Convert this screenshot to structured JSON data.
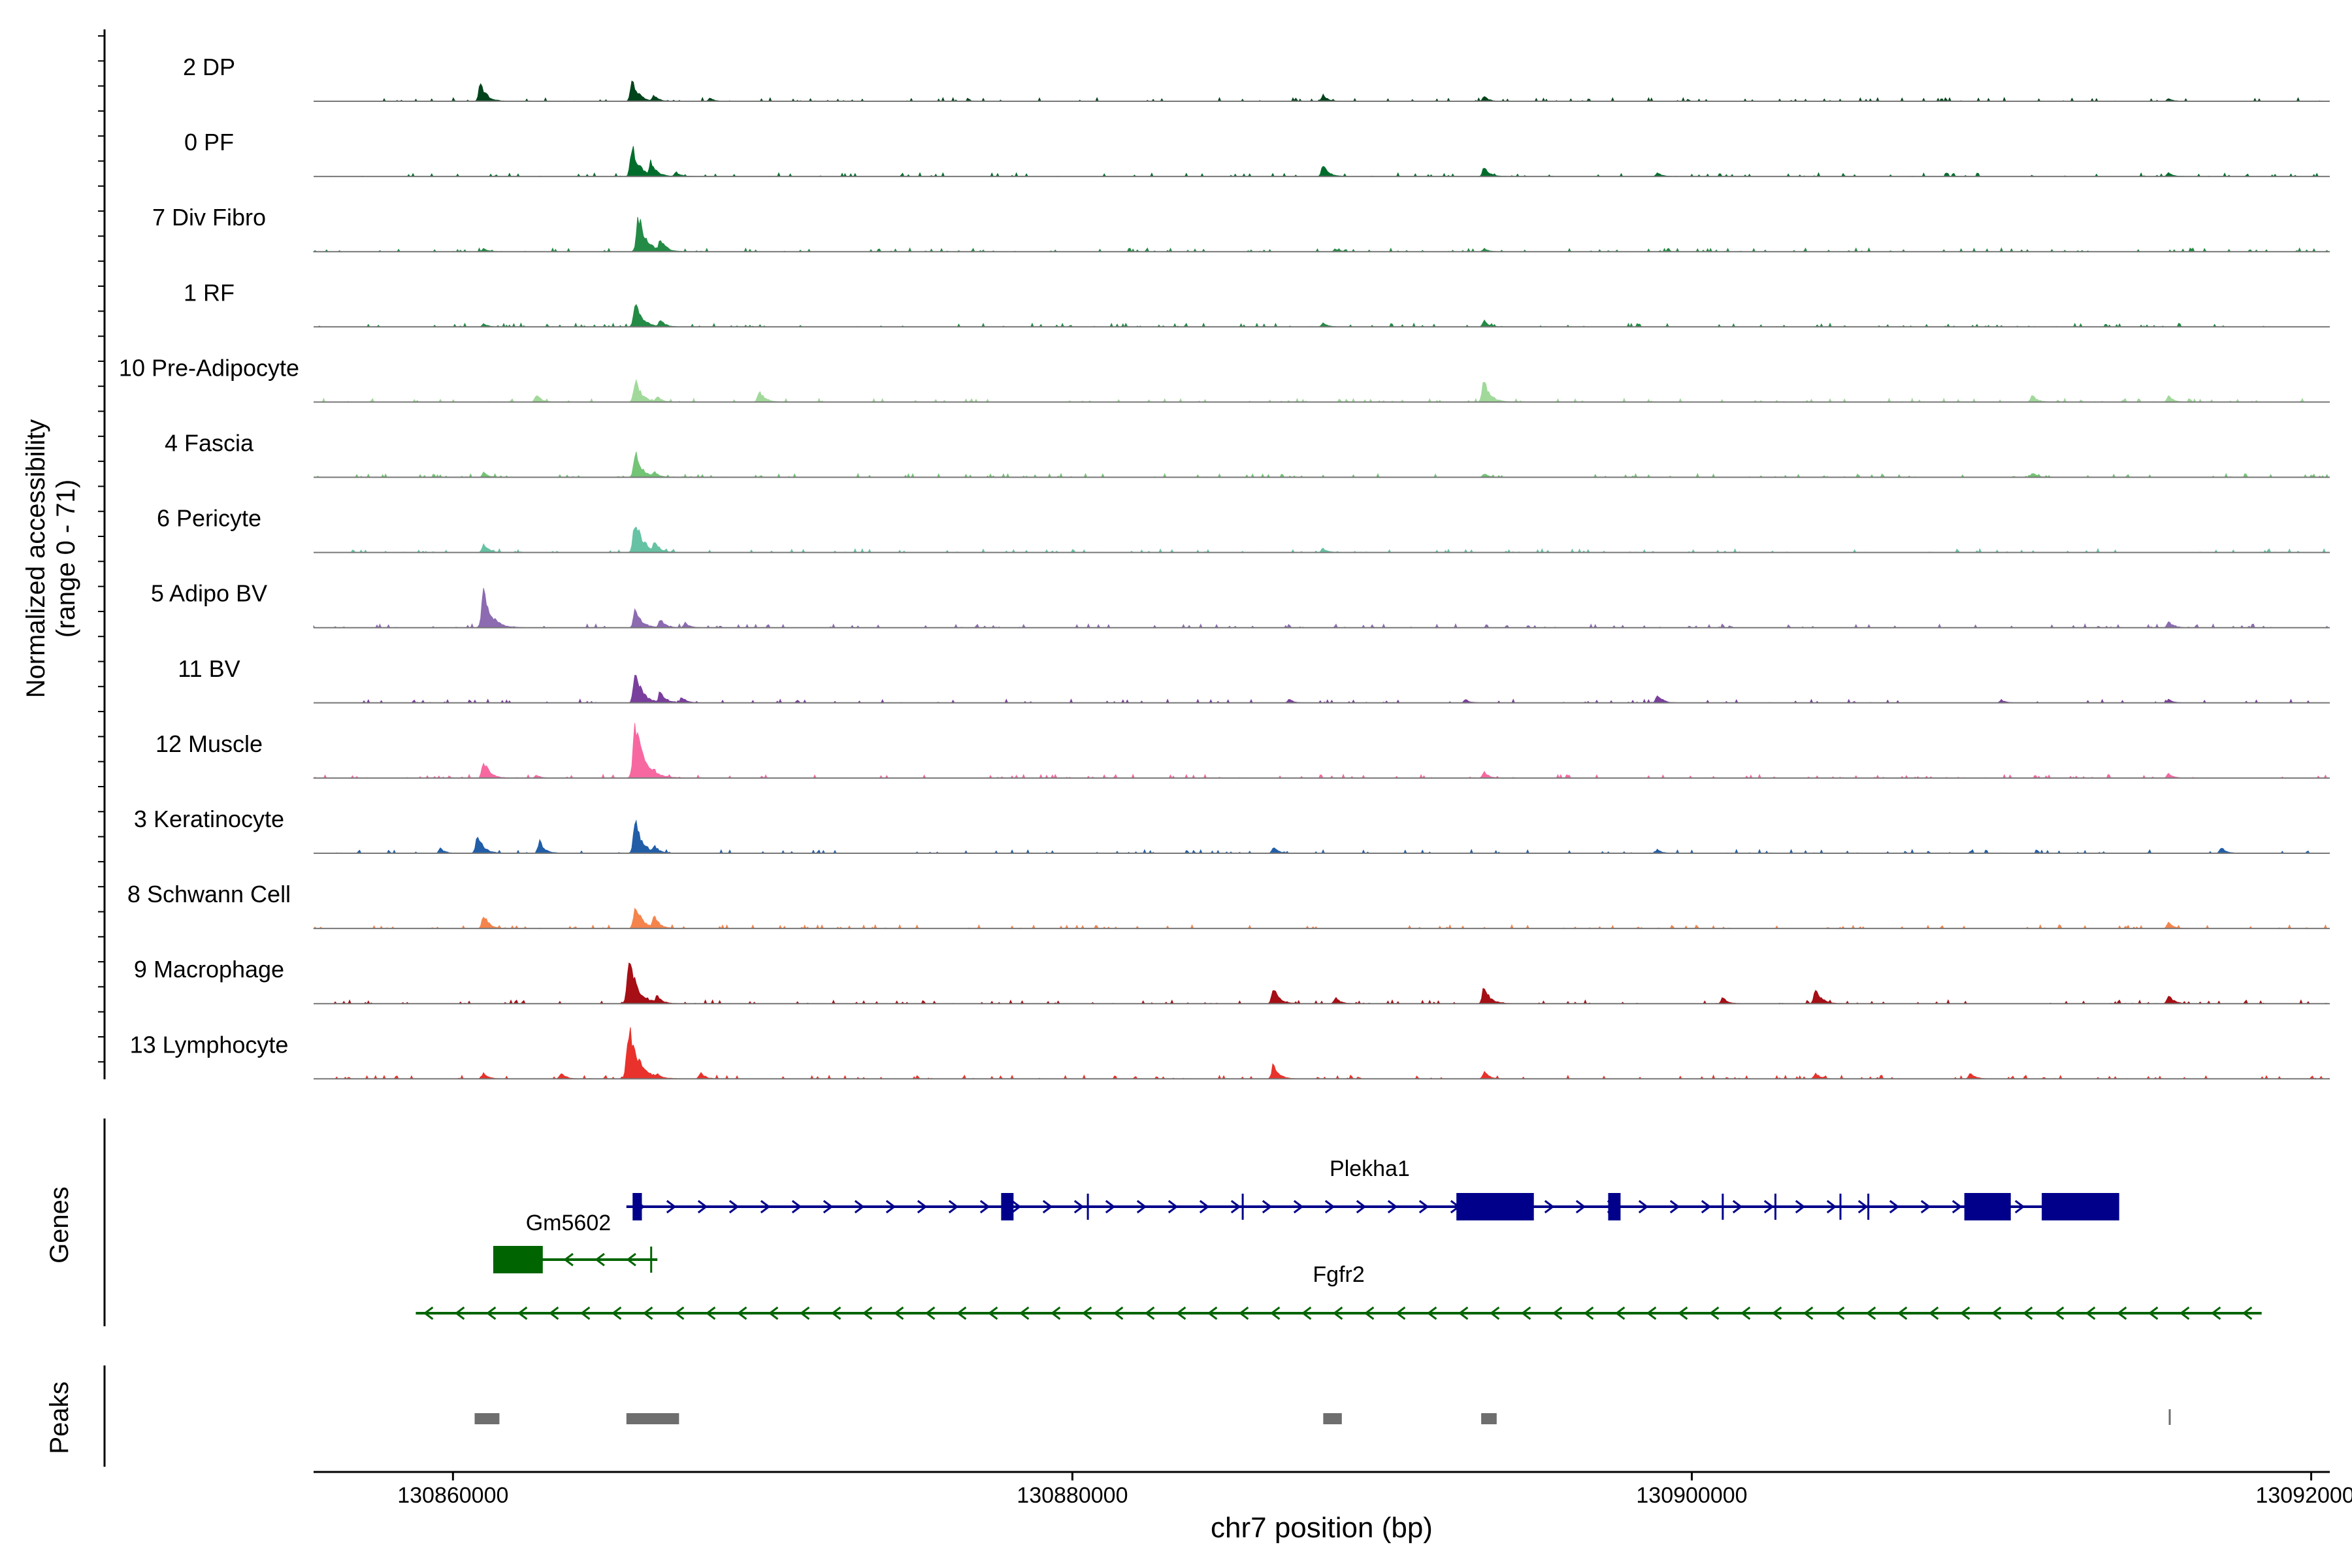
{
  "chart_data": {
    "type": "area",
    "ylabel_line1": "Normalized accessibility",
    "ylabel_line2": "(range 0 - 71)",
    "ylim": [
      0,
      71
    ],
    "xlabel": "chr7 position (bp)",
    "xlim": [
      130855500,
      130920600
    ],
    "xticks": [
      130860000,
      130880000,
      130900000,
      130920000
    ],
    "xtick_labels": [
      "130860000",
      "130880000",
      "130900000",
      "130920000"
    ],
    "tracks": [
      {
        "name": "2 DP",
        "color": "#00441b",
        "peaks": [
          {
            "x": 130860900,
            "h": 0.3
          },
          {
            "x": 130865800,
            "h": 0.34
          },
          {
            "x": 130866500,
            "h": 0.1
          },
          {
            "x": 130868300,
            "h": 0.05
          },
          {
            "x": 130888100,
            "h": 0.1
          },
          {
            "x": 130893300,
            "h": 0.08
          },
          {
            "x": 130915400,
            "h": 0.05
          }
        ]
      },
      {
        "name": "0 PF",
        "color": "#006d2c",
        "peaks": [
          {
            "x": 130865800,
            "h": 0.48
          },
          {
            "x": 130866400,
            "h": 0.25
          },
          {
            "x": 130867200,
            "h": 0.08
          },
          {
            "x": 130888100,
            "h": 0.2
          },
          {
            "x": 130893300,
            "h": 0.16
          },
          {
            "x": 130898900,
            "h": 0.06
          },
          {
            "x": 130915400,
            "h": 0.06
          }
        ]
      },
      {
        "name": "7 Div Fibro",
        "color": "#238b45",
        "peaks": [
          {
            "x": 130866000,
            "h": 0.58
          },
          {
            "x": 130866700,
            "h": 0.22
          },
          {
            "x": 130861000,
            "h": 0.05
          },
          {
            "x": 130888500,
            "h": 0.05
          },
          {
            "x": 130893300,
            "h": 0.05
          }
        ]
      },
      {
        "name": "1 RF",
        "color": "#238b45",
        "peaks": [
          {
            "x": 130865900,
            "h": 0.42
          },
          {
            "x": 130866700,
            "h": 0.12
          },
          {
            "x": 130888100,
            "h": 0.07
          },
          {
            "x": 130893300,
            "h": 0.1
          },
          {
            "x": 130861000,
            "h": 0.05
          }
        ]
      },
      {
        "name": "10 Pre-Adipocyte",
        "color": "#a1d99b",
        "peaks": [
          {
            "x": 130865900,
            "h": 0.36
          },
          {
            "x": 130866600,
            "h": 0.1
          },
          {
            "x": 130869900,
            "h": 0.2
          },
          {
            "x": 130893300,
            "h": 0.36
          },
          {
            "x": 130911000,
            "h": 0.12
          },
          {
            "x": 130915400,
            "h": 0.1
          },
          {
            "x": 130862700,
            "h": 0.12
          }
        ]
      },
      {
        "name": "4 Fascia",
        "color": "#74c476",
        "peaks": [
          {
            "x": 130865900,
            "h": 0.4
          },
          {
            "x": 130866500,
            "h": 0.1
          },
          {
            "x": 130861000,
            "h": 0.08
          },
          {
            "x": 130893300,
            "h": 0.06
          },
          {
            "x": 130911000,
            "h": 0.08
          }
        ]
      },
      {
        "name": "6 Pericyte",
        "color": "#66c2a4",
        "peaks": [
          {
            "x": 130865900,
            "h": 0.56
          },
          {
            "x": 130866500,
            "h": 0.2
          },
          {
            "x": 130861000,
            "h": 0.14
          },
          {
            "x": 130888100,
            "h": 0.07
          }
        ]
      },
      {
        "name": "5 Adipo BV",
        "color": "#8c6bb1",
        "peaks": [
          {
            "x": 130861000,
            "h": 0.58
          },
          {
            "x": 130865900,
            "h": 0.32
          },
          {
            "x": 130866700,
            "h": 0.14
          },
          {
            "x": 130867500,
            "h": 0.08
          },
          {
            "x": 130915400,
            "h": 0.1
          }
        ]
      },
      {
        "name": "11 BV",
        "color": "#7a3f9d",
        "peaks": [
          {
            "x": 130865900,
            "h": 0.48
          },
          {
            "x": 130866700,
            "h": 0.2
          },
          {
            "x": 130867400,
            "h": 0.1
          },
          {
            "x": 130898900,
            "h": 0.14
          },
          {
            "x": 130887000,
            "h": 0.06
          },
          {
            "x": 130892700,
            "h": 0.06
          },
          {
            "x": 130910000,
            "h": 0.05
          },
          {
            "x": 130915400,
            "h": 0.06
          }
        ]
      },
      {
        "name": "12 Muscle",
        "color": "#f768a1",
        "peaks": [
          {
            "x": 130865900,
            "h": 0.84
          },
          {
            "x": 130866500,
            "h": 0.15
          },
          {
            "x": 130861000,
            "h": 0.28
          },
          {
            "x": 130893300,
            "h": 0.1
          },
          {
            "x": 130915400,
            "h": 0.08
          },
          {
            "x": 130862700,
            "h": 0.05
          }
        ]
      },
      {
        "name": "3 Keratinocyte",
        "color": "#225ea8",
        "peaks": [
          {
            "x": 130865900,
            "h": 0.52
          },
          {
            "x": 130866500,
            "h": 0.14
          },
          {
            "x": 130860800,
            "h": 0.3
          },
          {
            "x": 130862800,
            "h": 0.2
          },
          {
            "x": 130859600,
            "h": 0.08
          },
          {
            "x": 130886500,
            "h": 0.1
          },
          {
            "x": 130898900,
            "h": 0.06
          },
          {
            "x": 130917100,
            "h": 0.1
          }
        ]
      },
      {
        "name": "8 Schwann Cell",
        "color": "#f4844c",
        "peaks": [
          {
            "x": 130865900,
            "h": 0.42
          },
          {
            "x": 130866500,
            "h": 0.22
          },
          {
            "x": 130861000,
            "h": 0.22
          },
          {
            "x": 130915400,
            "h": 0.1
          }
        ]
      },
      {
        "name": "9 Macrophage",
        "color": "#a50f15",
        "peaks": [
          {
            "x": 130865700,
            "h": 0.72
          },
          {
            "x": 130866600,
            "h": 0.14
          },
          {
            "x": 130886500,
            "h": 0.26
          },
          {
            "x": 130893300,
            "h": 0.28
          },
          {
            "x": 130904000,
            "h": 0.26
          },
          {
            "x": 130915400,
            "h": 0.14
          },
          {
            "x": 130901000,
            "h": 0.1
          },
          {
            "x": 130888500,
            "h": 0.1
          }
        ]
      },
      {
        "name": "13 Lymphocyte",
        "color": "#e8322b",
        "peaks": [
          {
            "x": 130865700,
            "h": 0.86
          },
          {
            "x": 130866600,
            "h": 0.1
          },
          {
            "x": 130886500,
            "h": 0.24
          },
          {
            "x": 130861000,
            "h": 0.1
          },
          {
            "x": 130863500,
            "h": 0.1
          },
          {
            "x": 130868000,
            "h": 0.1
          },
          {
            "x": 130893300,
            "h": 0.12
          },
          {
            "x": 130904000,
            "h": 0.1
          },
          {
            "x": 130909000,
            "h": 0.1
          }
        ]
      }
    ],
    "genes": {
      "label": "Genes",
      "items": [
        {
          "name": "Plekha1",
          "color": "#00008b",
          "strand": "+",
          "start": 130865600,
          "end": 130913600,
          "exons": [
            [
              130865800,
              130866100
            ],
            [
              130877700,
              130878100
            ],
            [
              130892400,
              130894900
            ],
            [
              130897300,
              130897700
            ],
            [
              130908800,
              130910300
            ],
            [
              130911300,
              130913800
            ]
          ],
          "marks": [
            130880500,
            130885500,
            130901000,
            130902700,
            130904800,
            130905700
          ]
        },
        {
          "name": "Gm5602",
          "color": "#006400",
          "strand": "-",
          "start": 130861300,
          "end": 130866600,
          "exons": [
            [
              130861300,
              130862900
            ]
          ],
          "marks": [
            130866400
          ]
        },
        {
          "name": "Fgfr2",
          "color": "#006400",
          "strand": "-",
          "start": 130858800,
          "end": 130918400,
          "exons": [],
          "marks": []
        }
      ]
    },
    "peaks": {
      "label": "Peaks",
      "color": "#6e6e6e",
      "regions": [
        [
          130860700,
          130861500
        ],
        [
          130865600,
          130867300
        ],
        [
          130888100,
          130888700
        ],
        [
          130893200,
          130893700
        ],
        [
          130915400,
          130915450
        ]
      ]
    }
  }
}
